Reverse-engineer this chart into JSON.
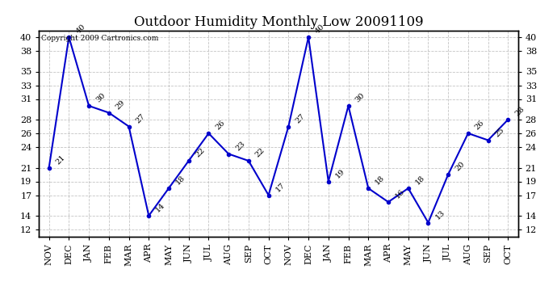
{
  "title": "Outdoor Humidity Monthly Low 20091109",
  "copyright_text": "Copyright 2009 Cartronics.com",
  "categories": [
    "NOV",
    "DEC",
    "JAN",
    "FEB",
    "MAR",
    "APR",
    "MAY",
    "JUN",
    "JUL",
    "AUG",
    "SEP",
    "OCT",
    "NOV",
    "DEC",
    "JAN",
    "FEB",
    "MAR",
    "APR",
    "MAY",
    "JUN",
    "JUL",
    "AUG",
    "SEP",
    "OCT"
  ],
  "values": [
    21,
    40,
    30,
    29,
    27,
    14,
    18,
    22,
    26,
    23,
    22,
    17,
    27,
    40,
    19,
    30,
    18,
    16,
    18,
    13,
    20,
    26,
    25,
    28
  ],
  "line_color": "#0000cc",
  "marker_color": "#0000cc",
  "background_color": "#ffffff",
  "plot_bg_color": "#ffffff",
  "grid_color": "#aaaaaa",
  "yticks": [
    12,
    14,
    17,
    19,
    21,
    24,
    26,
    28,
    31,
    33,
    35,
    38,
    40
  ],
  "ylim": [
    11,
    41
  ],
  "title_fontsize": 12,
  "label_fontsize": 7,
  "tick_fontsize": 8
}
